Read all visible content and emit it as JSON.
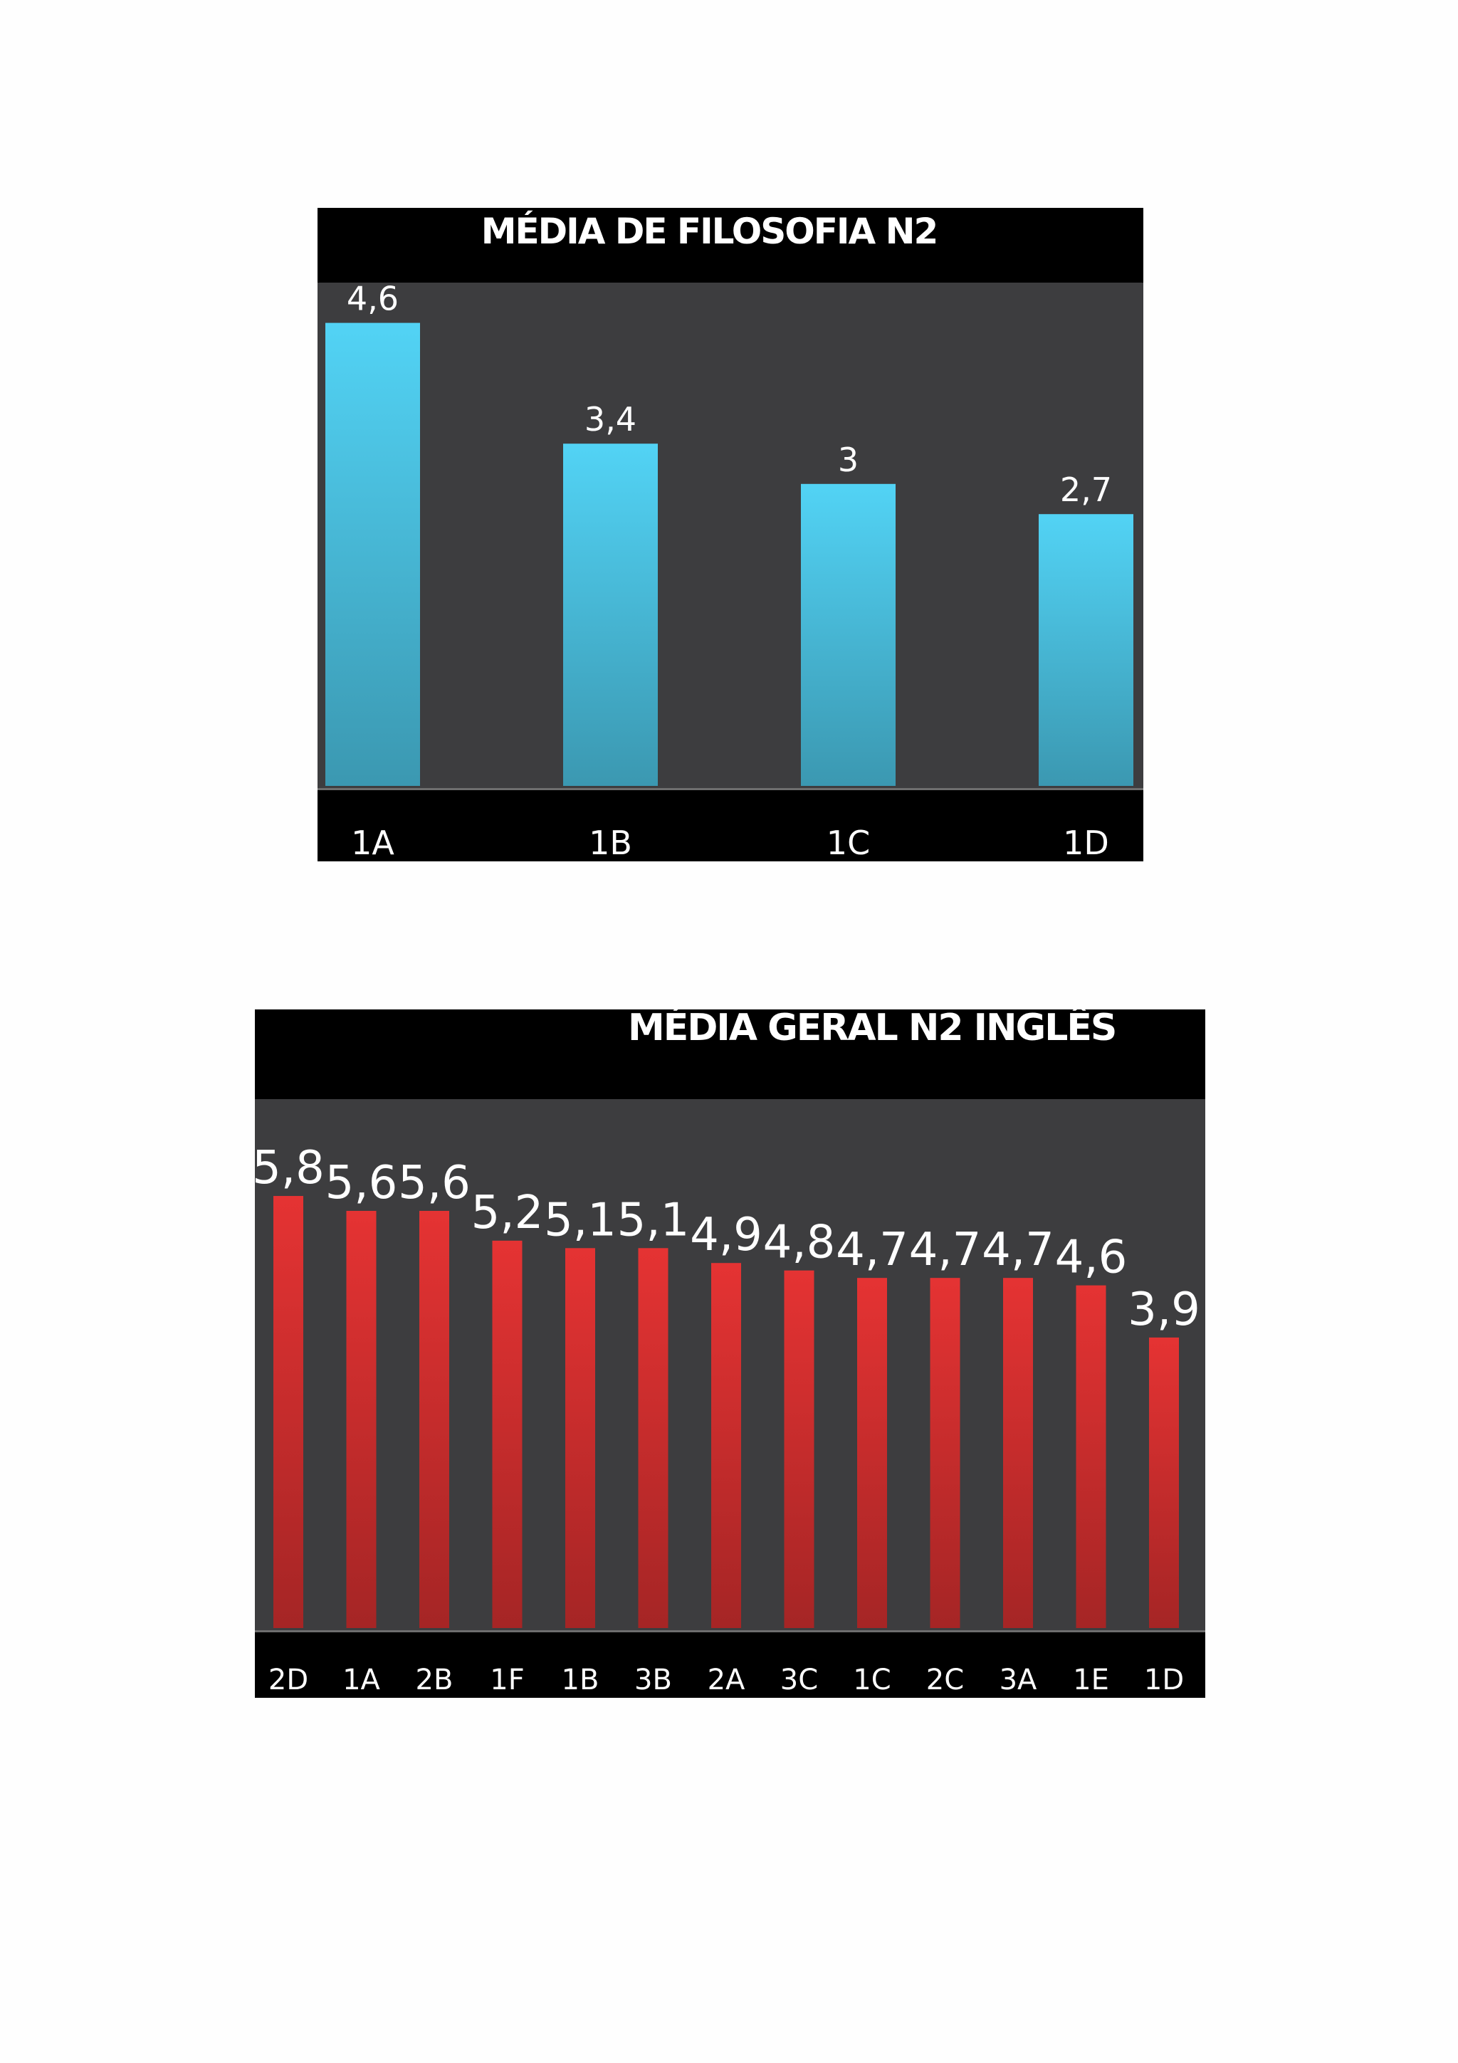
{
  "chart_data": [
    {
      "type": "bar",
      "title": "MÉDIA DE FILOSOFIA N2",
      "categories": [
        "1A",
        "1B",
        "1C",
        "1D"
      ],
      "values": [
        4.6,
        3.4,
        3,
        2.7
      ],
      "value_labels": [
        "4,6",
        "3,4",
        "3",
        "2,7"
      ],
      "ylim": [
        0,
        5
      ],
      "grid": false,
      "legend": "none",
      "bar_color": "#4cc3e3",
      "background": "#3d3d3f"
    },
    {
      "type": "bar",
      "title": "MÉDIA GERAL N2 INGLÊS",
      "categories": [
        "2D",
        "1A",
        "2B",
        "1F",
        "1B",
        "3B",
        "2A",
        "3C",
        "1C",
        "2C",
        "3A",
        "1E",
        "1D"
      ],
      "values": [
        5.8,
        5.6,
        5.6,
        5.2,
        5.1,
        5.1,
        4.9,
        4.8,
        4.7,
        4.7,
        4.7,
        4.6,
        3.9
      ],
      "value_labels": [
        "5,8",
        "5,6",
        "5,6",
        "5,2",
        "5,1",
        "5,1",
        "4,9",
        "4,8",
        "4,7",
        "4,7",
        "4,7",
        "4,6",
        "3,9"
      ],
      "ylim": [
        0,
        7.1
      ],
      "grid": false,
      "legend": "none",
      "bar_color": "#d42f2f",
      "background": "#3d3d3f"
    }
  ]
}
